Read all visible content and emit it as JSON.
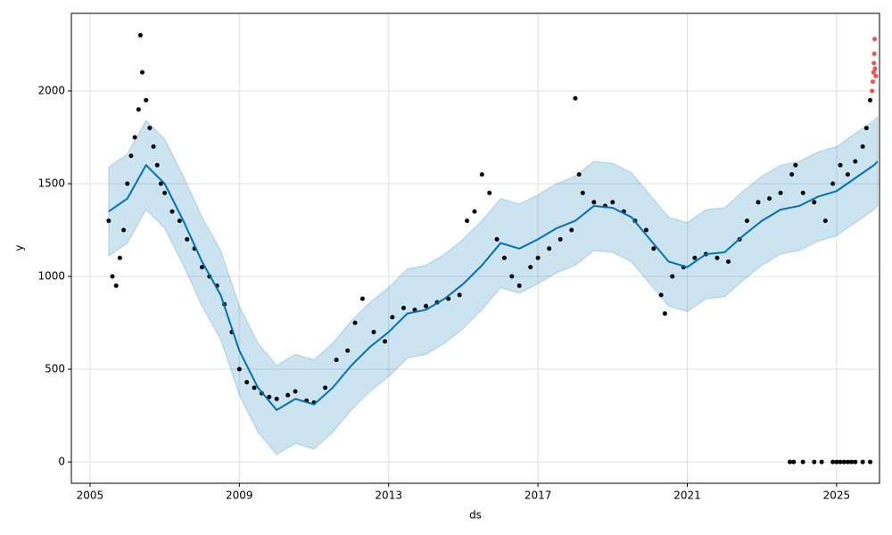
{
  "chart_data": {
    "type": "forecast",
    "xlabel": "ds",
    "ylabel": "y",
    "xlim": [
      2004.5,
      2026.15
    ],
    "ylim": [
      -115,
      2418
    ],
    "xticks": [
      2005,
      2009,
      2013,
      2017,
      2021,
      2025
    ],
    "yticks": [
      0,
      500,
      1000,
      1500,
      2000
    ],
    "grid": true,
    "forecast": {
      "color": "#0072B2",
      "x": [
        2005.5,
        2006,
        2006.5,
        2007,
        2007.5,
        2008,
        2008.5,
        2009,
        2009.5,
        2010,
        2010.5,
        2011,
        2011.5,
        2012,
        2012.5,
        2013,
        2013.5,
        2014,
        2014.5,
        2015,
        2015.5,
        2016,
        2016.5,
        2017,
        2017.5,
        2018,
        2018.5,
        2019,
        2019.5,
        2020,
        2020.5,
        2021,
        2021.5,
        2022,
        2022.5,
        2023,
        2023.5,
        2024,
        2024.5,
        2025,
        2025.5,
        2026,
        2026.1
      ],
      "values": [
        1350,
        1420,
        1600,
        1500,
        1300,
        1080,
        900,
        600,
        400,
        280,
        340,
        310,
        400,
        520,
        620,
        700,
        800,
        820,
        880,
        960,
        1060,
        1180,
        1150,
        1200,
        1260,
        1300,
        1380,
        1370,
        1320,
        1200,
        1080,
        1050,
        1120,
        1130,
        1220,
        1300,
        1360,
        1380,
        1430,
        1460,
        1530,
        1600,
        1620
      ],
      "lower": [
        1110,
        1180,
        1360,
        1260,
        1060,
        840,
        660,
        360,
        160,
        40,
        100,
        70,
        160,
        280,
        380,
        460,
        560,
        580,
        640,
        720,
        820,
        940,
        910,
        960,
        1020,
        1060,
        1140,
        1130,
        1080,
        960,
        840,
        810,
        880,
        890,
        980,
        1060,
        1120,
        1140,
        1190,
        1220,
        1290,
        1360,
        1380
      ],
      "upper": [
        1590,
        1660,
        1840,
        1740,
        1540,
        1320,
        1140,
        840,
        640,
        520,
        580,
        550,
        640,
        760,
        860,
        940,
        1040,
        1060,
        1120,
        1200,
        1300,
        1420,
        1390,
        1440,
        1500,
        1540,
        1620,
        1610,
        1560,
        1440,
        1320,
        1290,
        1360,
        1370,
        1460,
        1540,
        1600,
        1620,
        1670,
        1700,
        1770,
        1840,
        1860
      ]
    },
    "observed": {
      "color": "#000000",
      "x": [
        2005.5,
        2005.6,
        2005.7,
        2005.8,
        2005.9,
        2006.0,
        2006.1,
        2006.2,
        2006.3,
        2006.35,
        2006.4,
        2006.5,
        2006.6,
        2006.7,
        2006.8,
        2006.9,
        2007.0,
        2007.2,
        2007.4,
        2007.6,
        2007.8,
        2008.0,
        2008.2,
        2008.4,
        2008.6,
        2008.8,
        2009.0,
        2009.2,
        2009.4,
        2009.6,
        2009.8,
        2010.0,
        2010.3,
        2010.5,
        2010.8,
        2011.0,
        2011.3,
        2011.6,
        2011.9,
        2012.1,
        2012.3,
        2012.6,
        2012.9,
        2013.1,
        2013.4,
        2013.7,
        2014.0,
        2014.3,
        2014.6,
        2014.9,
        2015.1,
        2015.3,
        2015.5,
        2015.7,
        2015.9,
        2016.1,
        2016.3,
        2016.5,
        2016.8,
        2017.0,
        2017.3,
        2017.6,
        2017.9,
        2018.0,
        2018.1,
        2018.2,
        2018.5,
        2018.8,
        2019.0,
        2019.3,
        2019.6,
        2019.9,
        2020.1,
        2020.3,
        2020.4,
        2020.6,
        2020.9,
        2021.2,
        2021.5,
        2021.8,
        2022.1,
        2022.4,
        2022.6,
        2022.9,
        2023.2,
        2023.5,
        2023.8,
        2023.9,
        2024.1,
        2024.4,
        2024.7,
        2024.9,
        2025.1,
        2025.3,
        2025.5,
        2025.7,
        2025.8,
        2025.9,
        2023.75,
        2023.85,
        2024.1,
        2024.4,
        2024.6,
        2024.9,
        2025.0,
        2025.1,
        2025.2,
        2025.3,
        2025.4,
        2025.5,
        2025.7,
        2025.9
      ],
      "values": [
        1300,
        1000,
        950,
        1100,
        1250,
        1500,
        1650,
        1750,
        1900,
        2300,
        2100,
        1950,
        1800,
        1700,
        1600,
        1500,
        1450,
        1350,
        1300,
        1200,
        1150,
        1050,
        1000,
        950,
        850,
        700,
        500,
        430,
        400,
        370,
        350,
        340,
        360,
        380,
        330,
        320,
        400,
        550,
        600,
        750,
        880,
        700,
        650,
        780,
        830,
        820,
        840,
        860,
        880,
        900,
        1300,
        1350,
        1550,
        1450,
        1200,
        1100,
        1000,
        950,
        1050,
        1100,
        1150,
        1200,
        1250,
        1960,
        1550,
        1450,
        1400,
        1380,
        1400,
        1350,
        1300,
        1250,
        1150,
        900,
        800,
        1000,
        1050,
        1100,
        1120,
        1100,
        1080,
        1200,
        1300,
        1400,
        1420,
        1450,
        1550,
        1600,
        1450,
        1400,
        1300,
        1500,
        1600,
        1550,
        1620,
        1700,
        1800,
        1950,
        0,
        0,
        0,
        0,
        0,
        0,
        0,
        0,
        0,
        0,
        0,
        0,
        0,
        0
      ]
    },
    "outliers": {
      "color": "#ff0000",
      "x": [
        2025.95,
        2025.97,
        2025.99,
        2026.0,
        2026.01,
        2026.02,
        2026.03,
        2026.05
      ],
      "values": [
        2000,
        2050,
        2100,
        2150,
        2200,
        2280,
        2120,
        2080
      ]
    }
  }
}
